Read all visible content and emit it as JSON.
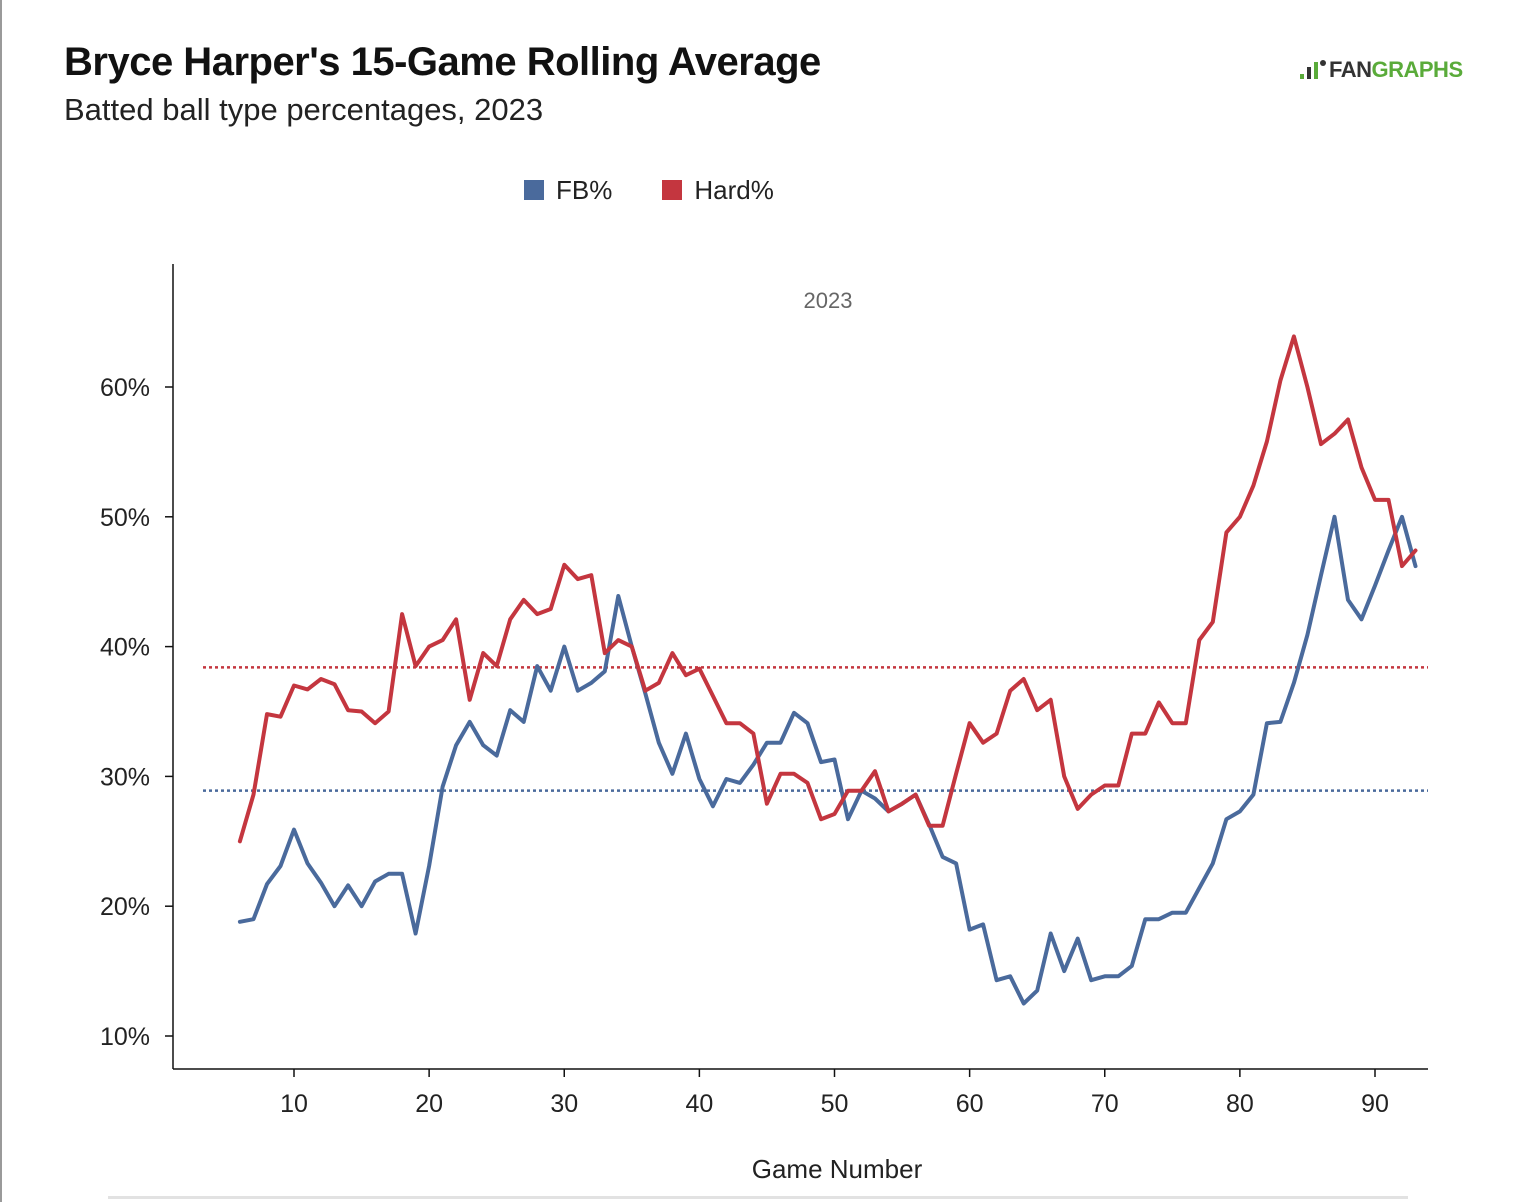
{
  "chart_data": {
    "type": "line",
    "title": "Bryce Harper's 15-Game Rolling Average",
    "subtitle": "Batted ball type percentages, 2023",
    "panel_label": "2023",
    "xlabel": "Game Number",
    "ylabel": "",
    "xlim": [
      1,
      94
    ],
    "ylim": [
      5,
      70
    ],
    "x_ticks": [
      10,
      20,
      30,
      40,
      50,
      60,
      70,
      80,
      90
    ],
    "y_ticks": [
      10,
      20,
      30,
      40,
      50,
      60
    ],
    "y_tick_labels": [
      "10%",
      "20%",
      "30%",
      "40%",
      "50%",
      "60%"
    ],
    "legend_position": "top",
    "grid": false,
    "x": [
      6,
      7,
      8,
      9,
      10,
      11,
      12,
      13,
      14,
      15,
      16,
      17,
      18,
      19,
      20,
      21,
      22,
      23,
      24,
      25,
      26,
      27,
      28,
      29,
      30,
      31,
      32,
      33,
      34,
      35,
      36,
      37,
      38,
      39,
      40,
      41,
      42,
      43,
      44,
      45,
      46,
      47,
      48,
      49,
      50,
      51,
      52,
      53,
      54,
      55,
      56,
      57,
      58,
      59,
      60,
      61,
      62,
      63,
      64,
      65,
      66,
      67,
      68,
      69,
      70,
      71,
      72,
      73,
      74,
      75,
      76,
      77,
      78,
      79,
      80,
      81,
      82,
      83,
      84,
      85,
      86,
      87,
      88,
      89,
      90,
      91,
      92,
      93
    ],
    "series": [
      {
        "name": "FB%",
        "color": "#4a6a9c",
        "average": 28.9,
        "values": [
          18.8,
          19.0,
          21.7,
          23.1,
          25.9,
          23.3,
          21.8,
          20.0,
          21.6,
          20.0,
          21.9,
          22.5,
          22.5,
          17.9,
          23.1,
          29.2,
          32.4,
          34.2,
          32.4,
          31.6,
          35.1,
          34.2,
          38.5,
          36.6,
          40.0,
          36.6,
          37.2,
          38.1,
          43.9,
          40.0,
          36.4,
          32.6,
          30.2,
          33.3,
          29.8,
          27.7,
          29.8,
          29.5,
          30.9,
          32.6,
          32.6,
          34.9,
          34.1,
          31.1,
          31.3,
          26.7,
          28.9,
          28.3,
          27.3,
          27.9,
          28.6,
          26.3,
          23.8,
          23.3,
          18.2,
          18.6,
          14.3,
          14.6,
          12.5,
          13.5,
          17.9,
          15.0,
          17.5,
          14.3,
          14.6,
          14.6,
          15.4,
          19.0,
          19.0,
          19.5,
          19.5,
          21.4,
          23.3,
          26.7,
          27.3,
          28.6,
          34.1,
          34.2,
          37.2,
          40.9,
          45.5,
          50.0,
          43.6,
          42.1,
          44.7,
          47.4,
          50.0,
          46.2
        ]
      },
      {
        "name": "Hard%",
        "color": "#c4363f",
        "average": 38.4,
        "values": [
          25.0,
          28.6,
          34.8,
          34.6,
          37.0,
          36.7,
          37.5,
          37.1,
          35.1,
          35.0,
          34.1,
          35.0,
          42.5,
          38.5,
          40.0,
          40.5,
          42.1,
          35.9,
          39.5,
          38.5,
          42.1,
          43.6,
          42.5,
          42.9,
          46.3,
          45.2,
          45.5,
          39.5,
          40.5,
          40.0,
          36.6,
          37.2,
          39.5,
          37.8,
          38.3,
          36.2,
          34.1,
          34.1,
          33.3,
          27.9,
          30.2,
          30.2,
          29.5,
          26.7,
          27.1,
          28.9,
          28.9,
          30.4,
          27.3,
          27.9,
          28.6,
          26.2,
          26.2,
          30.2,
          34.1,
          32.6,
          33.3,
          36.6,
          37.5,
          35.1,
          35.9,
          30.0,
          27.5,
          28.6,
          29.3,
          29.3,
          33.3,
          33.3,
          35.7,
          34.1,
          34.1,
          40.5,
          41.9,
          48.8,
          50.0,
          52.4,
          55.8,
          60.5,
          63.9,
          60.0,
          55.6,
          56.4,
          57.5,
          53.8,
          51.3,
          51.3,
          46.2,
          47.4
        ]
      }
    ]
  },
  "legend": [
    {
      "label": "FB%",
      "color": "#4a6a9c"
    },
    {
      "label": "Hard%",
      "color": "#c4363f"
    }
  ],
  "logo": {
    "fan": "FAN",
    "graphs": "GRAPHS"
  }
}
